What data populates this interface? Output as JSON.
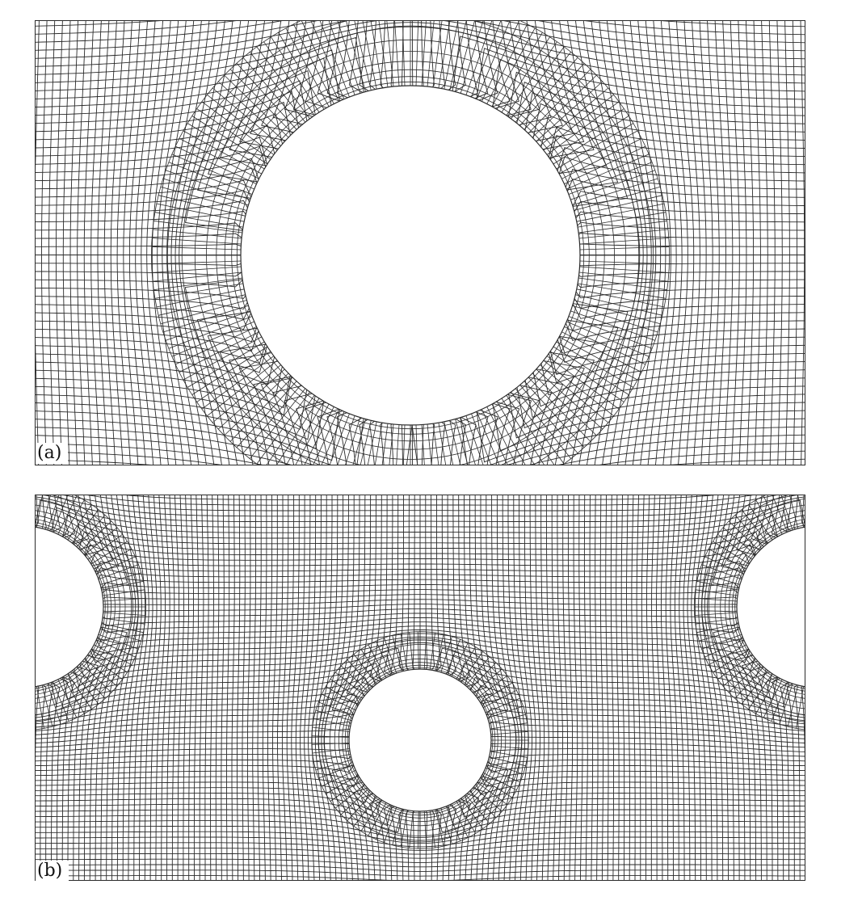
{
  "figure": {
    "panel_a": {
      "label": "(a)",
      "mesh": {
        "element_type": "quadrilateral",
        "holes": 1,
        "grid_columns": 96,
        "grid_rows": 55
      }
    },
    "panel_b": {
      "label": "(b)",
      "mesh": {
        "element_type": "quadrilateral",
        "holes": 3,
        "grid_columns": 140,
        "grid_rows": 70
      }
    }
  },
  "colors": {
    "mesh_line": "#2a2a2a",
    "background": "#ffffff",
    "label_text": "#111111"
  }
}
